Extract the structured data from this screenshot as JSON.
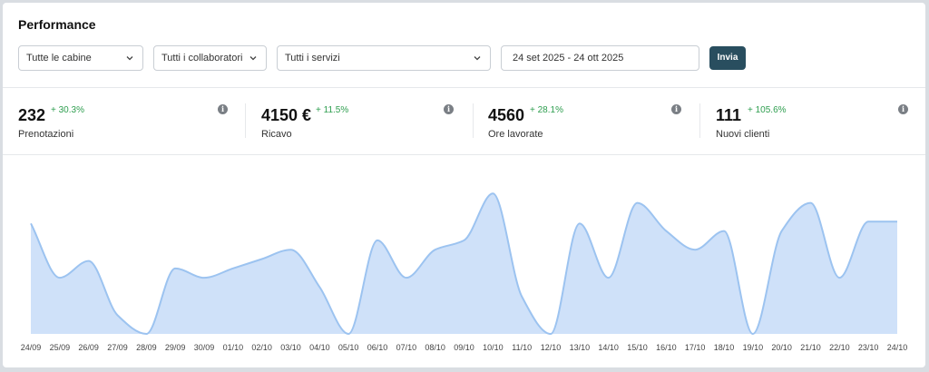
{
  "header": {
    "title": "Performance"
  },
  "filters": {
    "cabins": "Tutte le cabine",
    "staff": "Tutti i collaboratori",
    "services": "Tutti i servizi",
    "date_range": "24 set 2025 - 24 ott 2025",
    "submit_label": "Invia"
  },
  "kpis": [
    {
      "value": "232",
      "change": "+ 30.3%",
      "label": "Prenotazioni"
    },
    {
      "value": "4150 €",
      "change": "+ 11.5%",
      "label": "Ricavo"
    },
    {
      "value": "4560",
      "change": "+ 28.1%",
      "label": "Ore lavorate"
    },
    {
      "value": "111",
      "change": "+ 105.6%",
      "label": "Nuovi clienti"
    }
  ],
  "colors": {
    "accent": "#294e5f",
    "positive": "#2e9e4f",
    "area_fill": "#cfe1f9",
    "area_line": "#9cc3f0"
  },
  "chart_data": {
    "type": "area",
    "x": [
      "24/09",
      "25/09",
      "26/09",
      "27/09",
      "28/09",
      "29/09",
      "30/09",
      "01/10",
      "02/10",
      "03/10",
      "04/10",
      "05/10",
      "06/10",
      "07/10",
      "08/10",
      "09/10",
      "10/10",
      "11/10",
      "12/10",
      "13/10",
      "14/10",
      "15/10",
      "16/10",
      "17/10",
      "18/10",
      "19/10",
      "20/10",
      "21/10",
      "22/10",
      "23/10",
      "24/10"
    ],
    "series": [
      {
        "values": [
          59,
          30,
          39,
          10,
          0,
          35,
          30,
          35,
          40,
          45,
          25,
          0,
          50,
          30,
          45,
          50,
          75,
          20,
          0,
          59,
          30,
          70,
          55,
          45,
          55,
          0,
          55,
          70,
          30,
          60,
          60
        ]
      }
    ],
    "ylim": [
      0,
      80
    ],
    "grid": false,
    "legend": "none"
  }
}
